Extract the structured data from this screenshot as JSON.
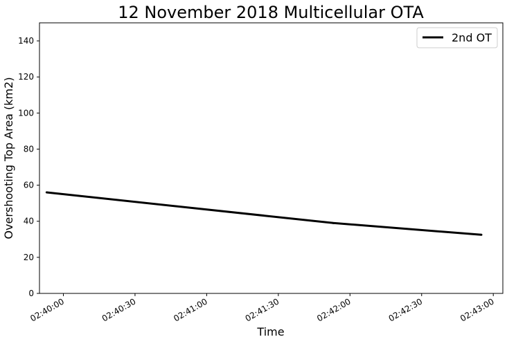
{
  "chart_data": {
    "type": "line",
    "title": "12 November 2018 Multicellular OTA",
    "xlabel": "Time",
    "ylabel": "Overshooting Top Area (km2)",
    "ylim": [
      0,
      150
    ],
    "yticks": [
      0,
      20,
      40,
      60,
      80,
      100,
      120,
      140
    ],
    "xlim": [
      "02:39:50",
      "02:43:04"
    ],
    "xticks": [
      "02:40:00",
      "02:40:30",
      "02:41:00",
      "02:41:30",
      "02:42:00",
      "02:42:30",
      "02:43:00"
    ],
    "grid": false,
    "legend_position": "top-right",
    "series": [
      {
        "name": "2nd OT",
        "color": "#000000",
        "x": [
          "02:39:53",
          "02:41:53",
          "02:42:55"
        ],
        "y": [
          56,
          39,
          32.5
        ]
      }
    ]
  }
}
